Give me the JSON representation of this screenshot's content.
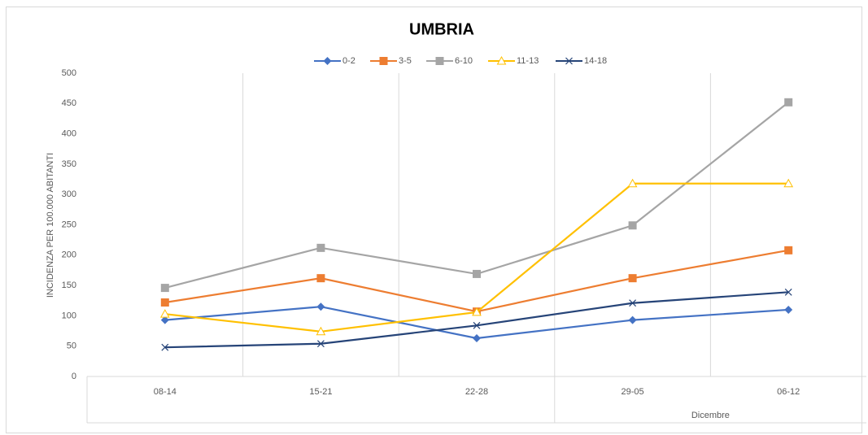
{
  "chart_data": {
    "type": "line",
    "title": "UMBRIA",
    "y_label": "INCIDENZA PER 100.000 ABITANTI",
    "categories": [
      "08-14",
      "15-21",
      "22-28",
      "29-05",
      "06-12"
    ],
    "x_group_label": "Dicembre",
    "ylim": [
      0,
      500
    ],
    "yticks": [
      0,
      50,
      100,
      150,
      200,
      250,
      300,
      350,
      400,
      450,
      500
    ],
    "legend": "top",
    "series": [
      {
        "name": "0-2",
        "color": "#4472c4",
        "marker": "diamond",
        "values": [
          93,
          115,
          63,
          93,
          110
        ]
      },
      {
        "name": "3-5",
        "color": "#ed7d31",
        "marker": "square",
        "values": [
          122,
          162,
          107,
          162,
          208
        ]
      },
      {
        "name": "6-10",
        "color": "#a5a5a5",
        "marker": "square",
        "values": [
          146,
          212,
          169,
          249,
          452
        ]
      },
      {
        "name": "11-13",
        "color": "#ffc000",
        "marker": "triangle",
        "values": [
          103,
          74,
          106,
          318,
          318
        ]
      },
      {
        "name": "14-18",
        "color": "#264478",
        "marker": "x",
        "values": [
          48,
          54,
          84,
          121,
          139
        ]
      }
    ]
  }
}
